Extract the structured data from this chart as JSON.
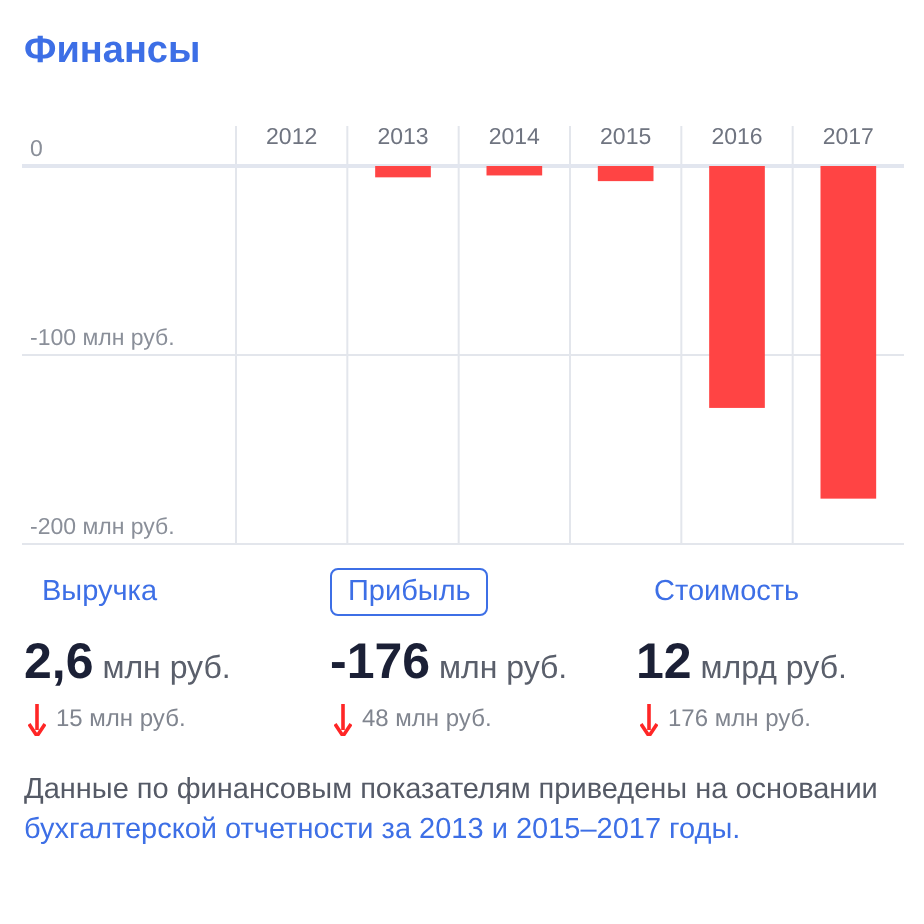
{
  "chart_data": [
    {
      "type": "bar",
      "title": "Финансы",
      "categories": [
        "2012",
        "2013",
        "2014",
        "2015",
        "2016",
        "2017"
      ],
      "values": [
        null,
        -6,
        -5,
        -8,
        -128,
        -176
      ],
      "color": "#ff4444",
      "ylim": [
        -200,
        0
      ],
      "yticks": [
        0,
        {
          "value": -100,
          "label": "-100 млн руб."
        },
        {
          "value": -200,
          "label": "-200 млн руб."
        }
      ],
      "grid": true
    },
    {
      "type": "other",
      "annotations": [
        "Выручка",
        "Прибыль",
        "Стоимость",
        "2,6 млн руб.",
        "-176 млн руб.",
        "12 млрд руб.",
        "15 млн руб.",
        "48 млн руб.",
        "176 млн руб.",
        "Данные по финансовым показателям приведены на основании ",
        "бухгалтерской отчетности за 2013 и 2015–2017 годы."
      ]
    }
  ]
}
